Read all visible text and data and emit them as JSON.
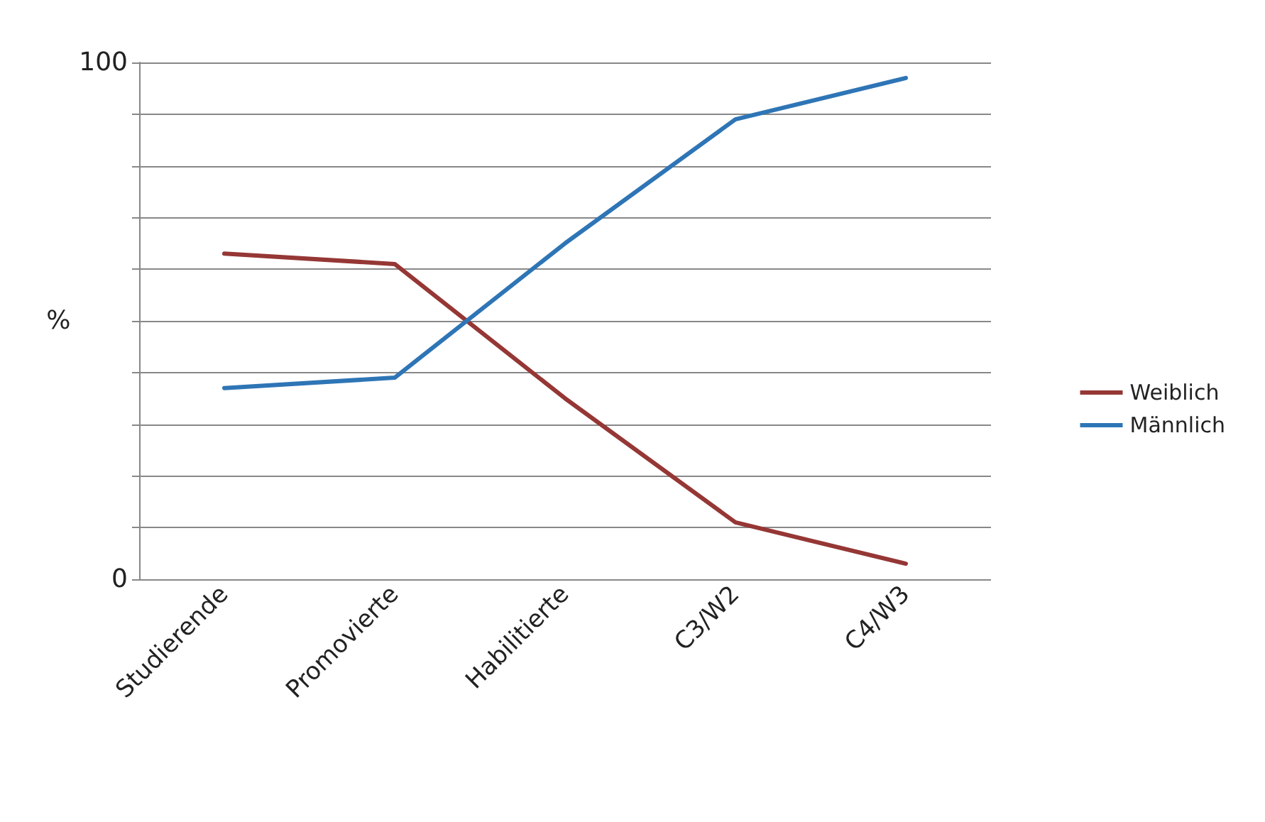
{
  "chart_data": {
    "type": "line",
    "ylabel": "%",
    "categories": [
      "Studierende",
      "Promovierte",
      "Habilitierte",
      "C3/W2",
      "C4/W3"
    ],
    "series": [
      {
        "name": "Weiblich",
        "color": "#953735",
        "values": [
          63,
          61,
          35,
          11,
          3
        ]
      },
      {
        "name": "Männlich",
        "color": "#2e75b6",
        "values": [
          37,
          39,
          65,
          89,
          97
        ]
      }
    ],
    "ylim": [
      0,
      100
    ],
    "yticks": [
      0,
      {
        "value": 10,
        "label": null
      },
      {
        "value": 20,
        "label": null
      },
      {
        "value": 30,
        "label": null
      },
      {
        "value": 40,
        "label": null
      },
      {
        "value": 50,
        "label": null
      },
      {
        "value": 60,
        "label": null
      },
      {
        "value": 70,
        "label": null
      },
      {
        "value": 80,
        "label": null
      },
      {
        "value": 90,
        "label": null
      },
      100
    ],
    "grid": "y",
    "legend": "right",
    "marker": "none",
    "line_style": "solid"
  }
}
